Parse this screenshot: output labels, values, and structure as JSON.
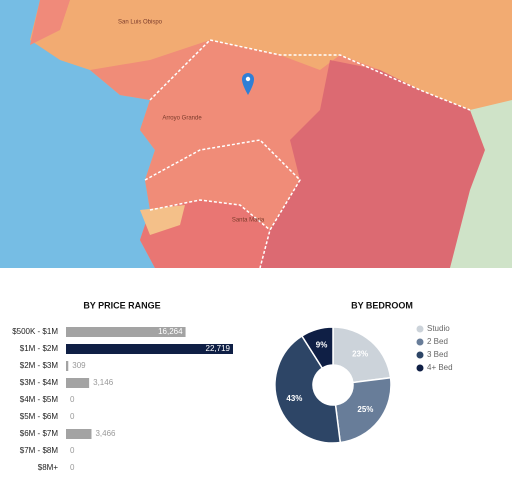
{
  "map": {
    "labels": [
      "San Luis Obispo",
      "Arroyo Grande",
      "Santa Maria"
    ]
  },
  "chart_data": [
    {
      "type": "hbar",
      "title": "BY PRICE RANGE",
      "categories": [
        "$500K - $1M",
        "$1M - $2M",
        "$2M - $3M",
        "$3M - $4M",
        "$4M - $5M",
        "$5M - $6M",
        "$6M - $7M",
        "$7M - $8M",
        "$8M+"
      ],
      "values": [
        16264,
        22719,
        309,
        3146,
        0,
        0,
        3466,
        0,
        0
      ],
      "value_labels": [
        "16,264",
        "22,719",
        "309",
        "3,146",
        "0",
        "0",
        "3,466",
        "0",
        "0"
      ],
      "colors": [
        "#a3a3a3",
        "#0f1f45",
        "#a3a3a3",
        "#a3a3a3",
        "#a3a3a3",
        "#a3a3a3",
        "#a3a3a3",
        "#a3a3a3",
        "#a3a3a3"
      ]
    },
    {
      "type": "donut",
      "title": "BY BEDROOM",
      "categories": [
        "Studio",
        "2 Bed",
        "3 Bed",
        "4+ Bed"
      ],
      "values": [
        23,
        25,
        43,
        9
      ],
      "value_labels": [
        "23%",
        "25%",
        "43%",
        "9%"
      ],
      "colors": [
        "#ccd3da",
        "#687d99",
        "#2d4566",
        "#0f1f45"
      ],
      "legend": "right"
    }
  ]
}
